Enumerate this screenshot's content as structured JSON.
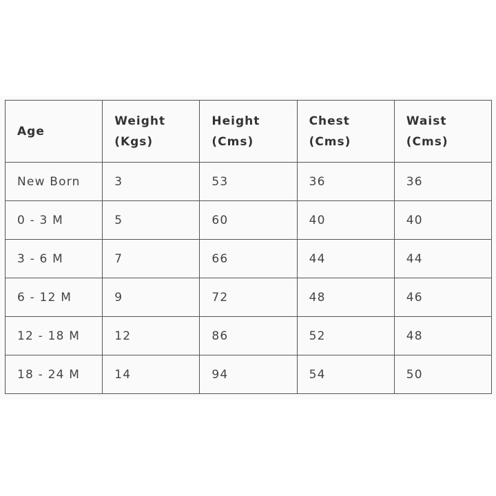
{
  "table": {
    "headers": [
      [
        "Age"
      ],
      [
        "Weight",
        "(Kgs)"
      ],
      [
        "Height",
        "(Cms)"
      ],
      [
        "Chest",
        "(Cms)"
      ],
      [
        "Waist",
        "(Cms)"
      ]
    ],
    "rows": [
      [
        "New Born",
        "3",
        "53",
        "36",
        "36"
      ],
      [
        "0 - 3 M",
        "5",
        "60",
        "40",
        "40"
      ],
      [
        "3 - 6 M",
        "7",
        "66",
        "44",
        "44"
      ],
      [
        "6 - 12 M",
        "9",
        "72",
        "48",
        "46"
      ],
      [
        "12 - 18 M",
        "12",
        "86",
        "52",
        "48"
      ],
      [
        "18 - 24 M",
        "14",
        "94",
        "54",
        "50"
      ]
    ]
  }
}
